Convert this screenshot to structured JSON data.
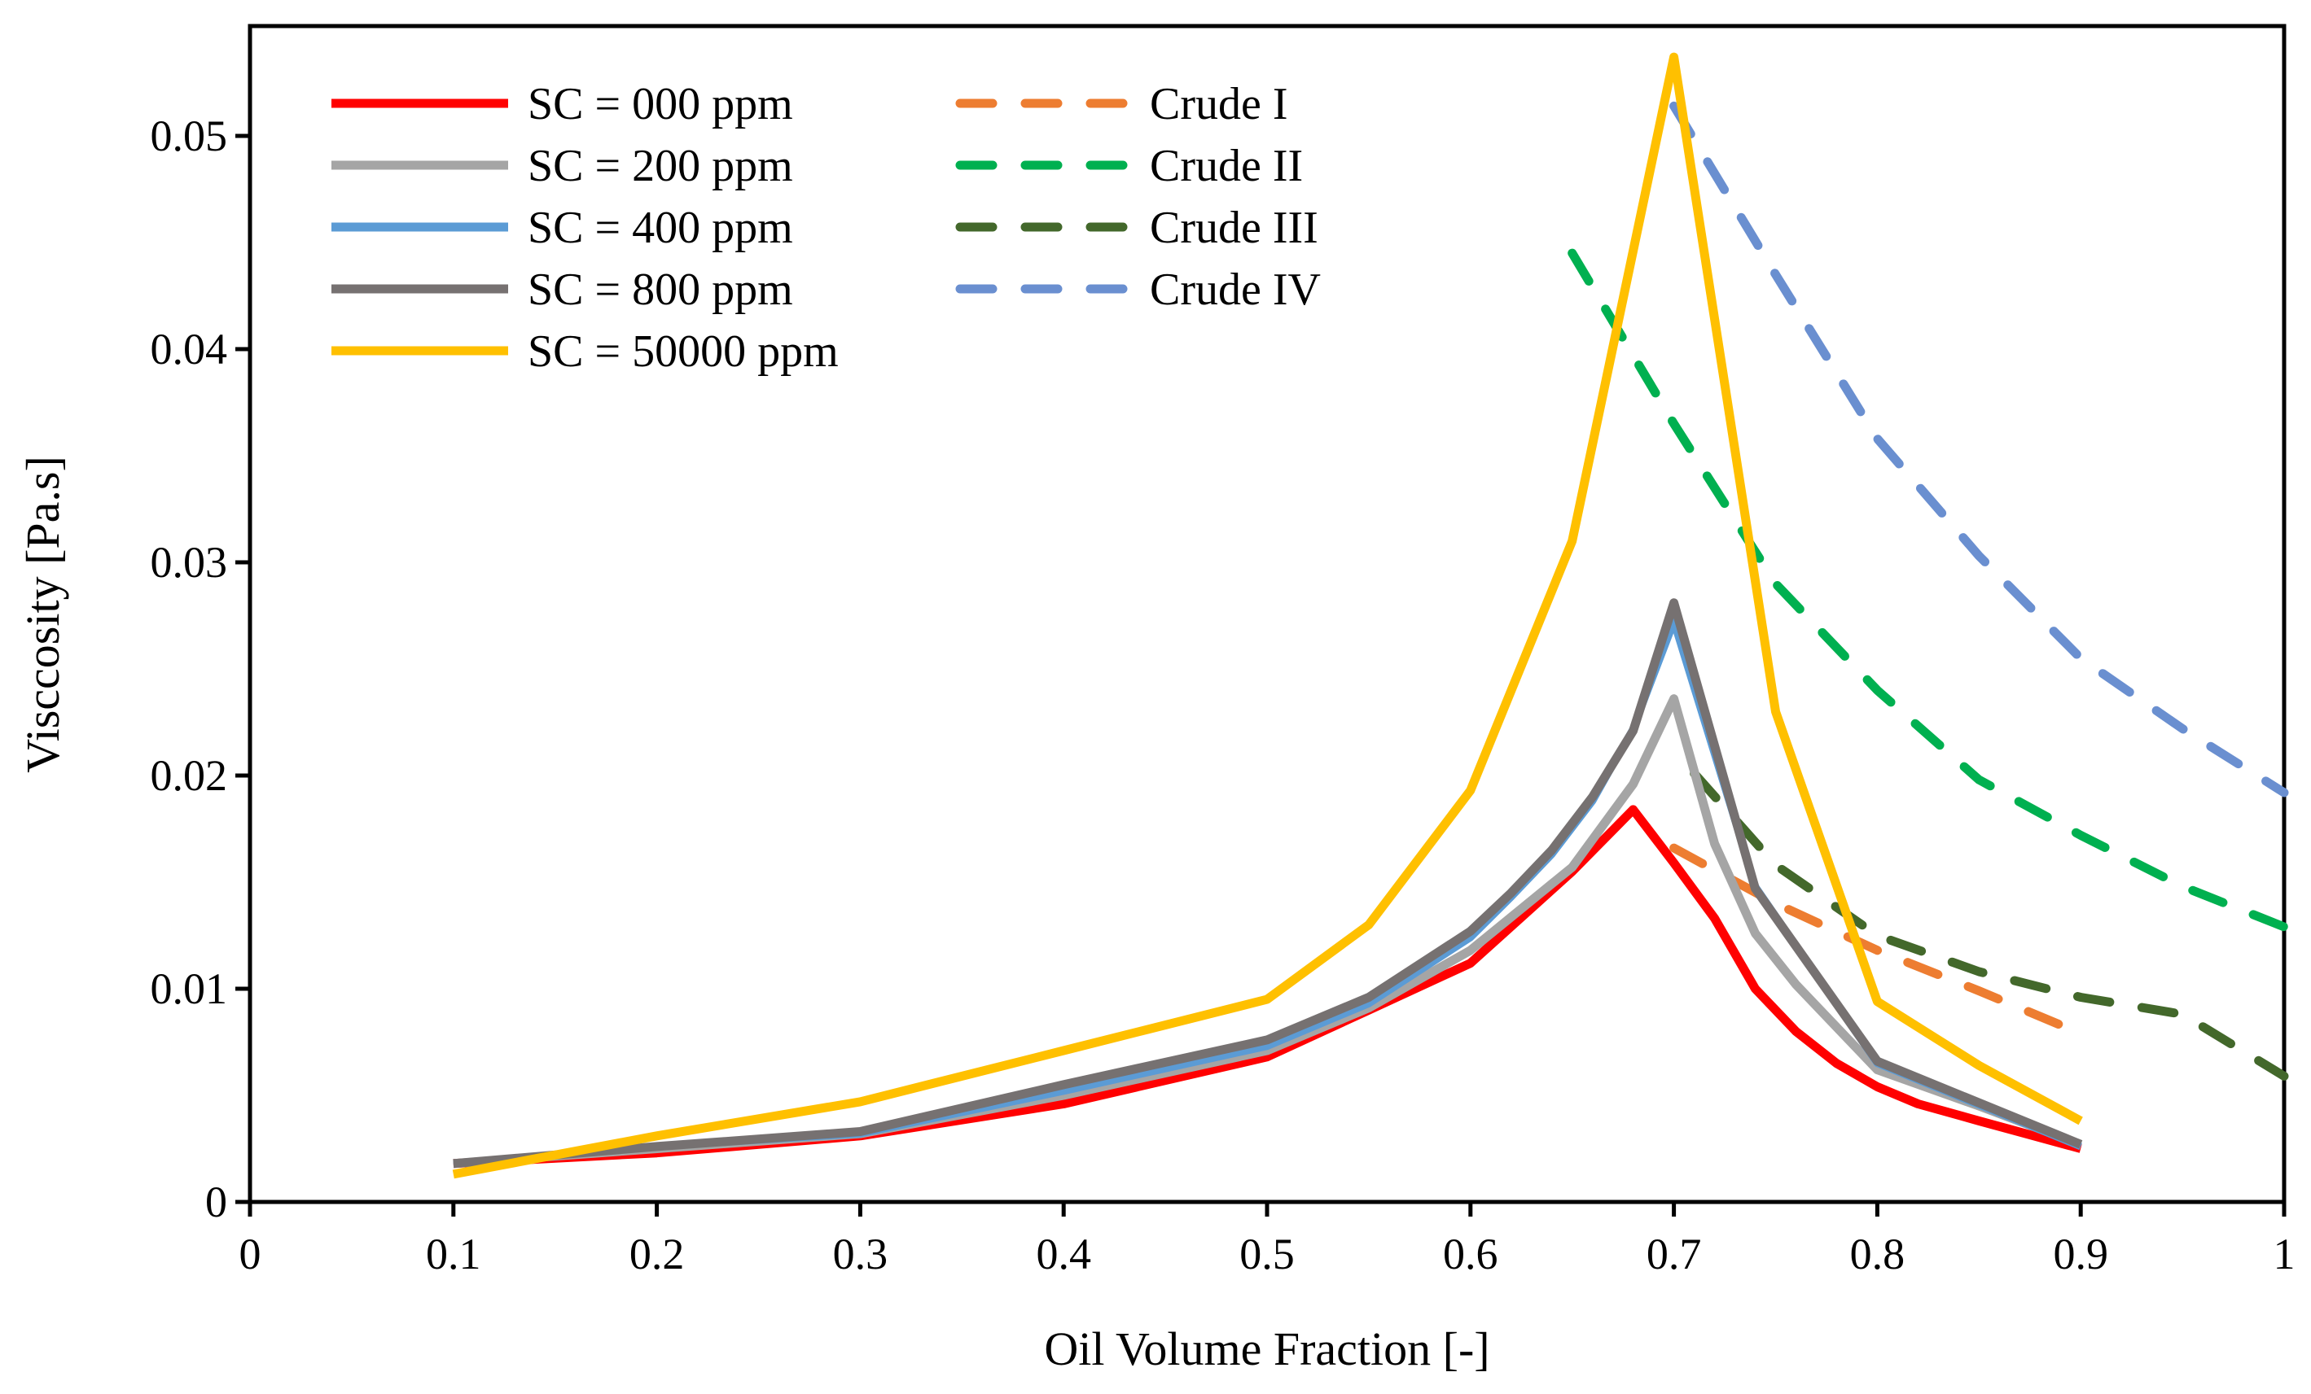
{
  "chart_data": {
    "type": "line",
    "title": "",
    "xlabel": "Oil Volume Fraction [-]",
    "ylabel": "Visccosity [Pa.s]",
    "xlim": [
      0,
      1
    ],
    "ylim": [
      0,
      0.054
    ],
    "xticks": [
      "0",
      "0.1",
      "0.2",
      "0.3",
      "0.4",
      "0.5",
      "0.6",
      "0.7",
      "0.8",
      "0.9",
      "1"
    ],
    "xtick_values": [
      0,
      0.1,
      0.2,
      0.3,
      0.4,
      0.5,
      0.6,
      0.7,
      0.8,
      0.9,
      1
    ],
    "yticks": [
      "0",
      "0.01",
      "0.02",
      "0.03",
      "0.04",
      "0.05"
    ],
    "ytick_values": [
      0,
      0.01,
      0.02,
      0.03,
      0.04,
      0.05
    ],
    "grid": false,
    "legend_placement": "top-left",
    "series": [
      {
        "name": "SC = 000 ppm",
        "color": "#ff0000",
        "dash": false,
        "x": [
          0.1,
          0.2,
          0.3,
          0.4,
          0.5,
          0.55,
          0.6,
          0.65,
          0.68,
          0.7,
          0.72,
          0.74,
          0.76,
          0.78,
          0.8,
          0.82,
          0.85,
          0.9
        ],
        "y": [
          0.0018,
          0.0023,
          0.0031,
          0.0046,
          0.0068,
          0.009,
          0.0112,
          0.0155,
          0.0184,
          0.0159,
          0.0133,
          0.01,
          0.008,
          0.0065,
          0.0054,
          0.0046,
          0.0038,
          0.0025
        ]
      },
      {
        "name": "SC = 200 ppm",
        "color": "#a5a5a5",
        "dash": false,
        "x": [
          0.1,
          0.2,
          0.3,
          0.4,
          0.5,
          0.55,
          0.6,
          0.65,
          0.68,
          0.7,
          0.72,
          0.74,
          0.76,
          0.78,
          0.8,
          0.85,
          0.9
        ],
        "y": [
          0.0018,
          0.0025,
          0.0032,
          0.005,
          0.0071,
          0.0091,
          0.0118,
          0.0157,
          0.0196,
          0.0236,
          0.0168,
          0.0126,
          0.0102,
          0.0082,
          0.0062,
          0.0045,
          0.0027
        ]
      },
      {
        "name": "SC = 400 ppm",
        "color": "#5b9bd5",
        "dash": false,
        "x": [
          0.1,
          0.2,
          0.3,
          0.4,
          0.5,
          0.55,
          0.6,
          0.62,
          0.64,
          0.66,
          0.68,
          0.7,
          0.74,
          0.8,
          0.9
        ],
        "y": [
          0.0018,
          0.0026,
          0.0032,
          0.0052,
          0.0073,
          0.0093,
          0.0124,
          0.0143,
          0.0163,
          0.0188,
          0.0222,
          0.0272,
          0.0148,
          0.0065,
          0.0026
        ]
      },
      {
        "name": "SC = 800 ppm",
        "color": "#767171",
        "dash": false,
        "x": [
          0.1,
          0.2,
          0.3,
          0.4,
          0.5,
          0.55,
          0.6,
          0.62,
          0.64,
          0.66,
          0.68,
          0.7,
          0.74,
          0.8,
          0.9
        ],
        "y": [
          0.0018,
          0.0026,
          0.0033,
          0.0055,
          0.0076,
          0.0096,
          0.0127,
          0.0145,
          0.0165,
          0.019,
          0.0221,
          0.0281,
          0.0147,
          0.0066,
          0.0027
        ]
      },
      {
        "name": "SC = 50000 ppm",
        "color": "#ffc000",
        "dash": false,
        "x": [
          0.1,
          0.2,
          0.3,
          0.4,
          0.5,
          0.55,
          0.6,
          0.65,
          0.7,
          0.75,
          0.8,
          0.85,
          0.9
        ],
        "y": [
          0.0013,
          0.0031,
          0.0047,
          0.0071,
          0.0095,
          0.013,
          0.0193,
          0.031,
          0.0537,
          0.023,
          0.0094,
          0.0064,
          0.0038
        ]
      },
      {
        "name": "Crude I",
        "color": "#ed7d31",
        "dash": true,
        "x": [
          0.7,
          0.75,
          0.8,
          0.85,
          0.9
        ],
        "y": [
          0.0166,
          0.014,
          0.0118,
          0.0099,
          0.0079
        ]
      },
      {
        "name": "Crude II",
        "color": "#00b050",
        "dash": true,
        "x": [
          0.65,
          0.7,
          0.75,
          0.8,
          0.85,
          0.9,
          0.95,
          1.0
        ],
        "y": [
          0.0445,
          0.0365,
          0.029,
          0.024,
          0.0198,
          0.0172,
          0.0148,
          0.0129
        ]
      },
      {
        "name": "Crude III",
        "color": "#43682b",
        "dash": true,
        "x": [
          0.71,
          0.75,
          0.8,
          0.85,
          0.9,
          0.95,
          1.0
        ],
        "y": [
          0.0201,
          0.0158,
          0.0125,
          0.0108,
          0.0096,
          0.0088,
          0.0059
        ]
      },
      {
        "name": "Crude IV",
        "color": "#6a8fd0",
        "dash": true,
        "x": [
          0.7,
          0.75,
          0.8,
          0.85,
          0.9,
          0.95,
          1.0
        ],
        "y": [
          0.0514,
          0.0435,
          0.0358,
          0.0303,
          0.0255,
          0.0222,
          0.0192
        ]
      }
    ]
  }
}
